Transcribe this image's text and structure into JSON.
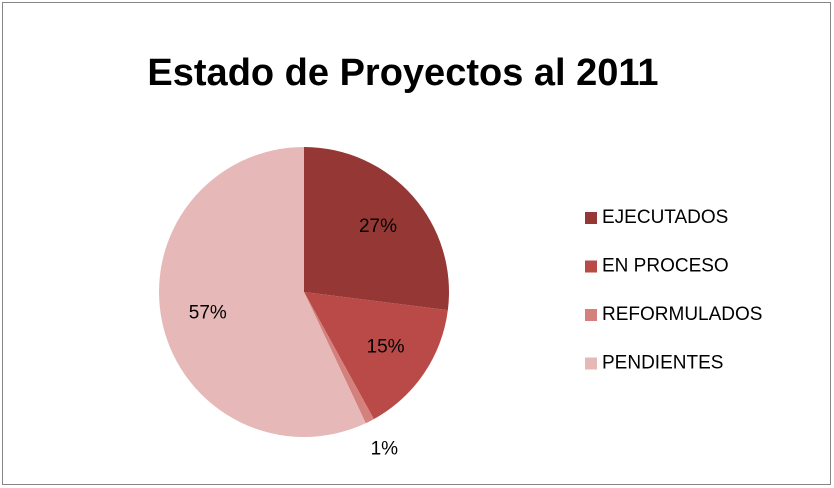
{
  "chart_data": {
    "type": "pie",
    "title": "Estado de Proyectos al 2011",
    "categories": [
      "EJECUTADOS",
      "EN PROCESO",
      "REFORMULADOS",
      "PENDIENTES"
    ],
    "values": [
      27,
      15,
      1,
      57
    ],
    "value_labels": [
      "27%",
      "15%",
      "1%",
      "57%"
    ],
    "colors": [
      "#953735",
      "#b94a48",
      "#d4807d",
      "#e6b9b8"
    ],
    "legend": "right"
  }
}
